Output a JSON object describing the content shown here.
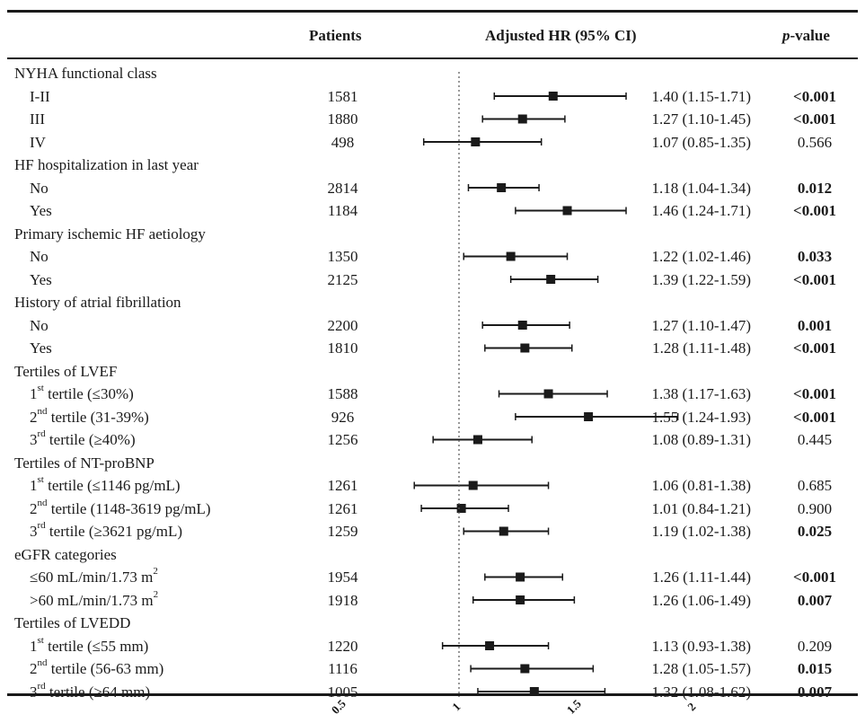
{
  "header": {
    "patients": "Patients",
    "hr": "Adjusted HR (95% CI)",
    "pvalue_italic": "p",
    "pvalue_rest": "-value"
  },
  "chart_data": {
    "type": "forest",
    "title": "",
    "reference_line": 1,
    "x_ticks": [
      "0.5",
      "1",
      "1.5",
      "2"
    ],
    "xlim": [
      0.5,
      2
    ],
    "rows": [
      {
        "label": "NYHA functional class",
        "header": true
      },
      {
        "label": "I-II",
        "patients": "1581",
        "hr": 1.4,
        "lo": 1.15,
        "hi": 1.71,
        "ci_text": "1.40 (1.15-1.71)",
        "p": "<0.001",
        "sig": true
      },
      {
        "label": "III",
        "patients": "1880",
        "hr": 1.27,
        "lo": 1.1,
        "hi": 1.45,
        "ci_text": "1.27 (1.10-1.45)",
        "p": "<0.001",
        "sig": true
      },
      {
        "label": "IV",
        "patients": "498",
        "hr": 1.07,
        "lo": 0.85,
        "hi": 1.35,
        "ci_text": "1.07 (0.85-1.35)",
        "p": "0.566",
        "sig": false
      },
      {
        "label": "HF hospitalization in last year",
        "header": true
      },
      {
        "label": "No",
        "patients": "2814",
        "hr": 1.18,
        "lo": 1.04,
        "hi": 1.34,
        "ci_text": "1.18 (1.04-1.34)",
        "p": "0.012",
        "sig": true
      },
      {
        "label": "Yes",
        "patients": "1184",
        "hr": 1.46,
        "lo": 1.24,
        "hi": 1.71,
        "ci_text": "1.46 (1.24-1.71)",
        "p": "<0.001",
        "sig": true
      },
      {
        "label": "Primary ischemic HF aetiology",
        "header": true
      },
      {
        "label": "No",
        "patients": "1350",
        "hr": 1.22,
        "lo": 1.02,
        "hi": 1.46,
        "ci_text": "1.22 (1.02-1.46)",
        "p": "0.033",
        "sig": true
      },
      {
        "label": "Yes",
        "patients": "2125",
        "hr": 1.39,
        "lo": 1.22,
        "hi": 1.59,
        "ci_text": "1.39 (1.22-1.59)",
        "p": "<0.001",
        "sig": true
      },
      {
        "label": "History of atrial fibrillation",
        "header": true
      },
      {
        "label": "No",
        "patients": "2200",
        "hr": 1.27,
        "lo": 1.1,
        "hi": 1.47,
        "ci_text": "1.27 (1.10-1.47)",
        "p": "0.001",
        "sig": true
      },
      {
        "label": "Yes",
        "patients": "1810",
        "hr": 1.28,
        "lo": 1.11,
        "hi": 1.48,
        "ci_text": "1.28 (1.11-1.48)",
        "p": "<0.001",
        "sig": true
      },
      {
        "label": "Tertiles of LVEF",
        "header": true
      },
      {
        "label_pre": "1",
        "label_sup": "st",
        "label_post": " tertile (≤30%)",
        "patients": "1588",
        "hr": 1.38,
        "lo": 1.17,
        "hi": 1.63,
        "ci_text": "1.38 (1.17-1.63)",
        "p": "<0.001",
        "sig": true
      },
      {
        "label_pre": "2",
        "label_sup": "nd",
        "label_post": " tertile (31-39%)",
        "patients": "926",
        "hr": 1.55,
        "lo": 1.24,
        "hi": 1.93,
        "ci_text": "1.55 (1.24-1.93)",
        "p": "<0.001",
        "sig": true
      },
      {
        "label_pre": "3",
        "label_sup": "rd",
        "label_post": " tertile (≥40%)",
        "patients": "1256",
        "hr": 1.08,
        "lo": 0.89,
        "hi": 1.31,
        "ci_text": "1.08 (0.89-1.31)",
        "p": "0.445",
        "sig": false
      },
      {
        "label": "Tertiles of NT-proBNP",
        "header": true
      },
      {
        "label_pre": "1",
        "label_sup": "st",
        "label_post": " tertile (≤1146 pg/mL)",
        "patients": "1261",
        "hr": 1.06,
        "lo": 0.81,
        "hi": 1.38,
        "ci_text": "1.06 (0.81-1.38)",
        "p": "0.685",
        "sig": false
      },
      {
        "label_pre": "2",
        "label_sup": "nd",
        "label_post": " tertile (1148-3619 pg/mL)",
        "patients": "1261",
        "hr": 1.01,
        "lo": 0.84,
        "hi": 1.21,
        "ci_text": "1.01 (0.84-1.21)",
        "p": "0.900",
        "sig": false
      },
      {
        "label_pre": "3",
        "label_sup": "rd",
        "label_post": " tertile (≥3621 pg/mL)",
        "patients": "1259",
        "hr": 1.19,
        "lo": 1.02,
        "hi": 1.38,
        "ci_text": "1.19 (1.02-1.38)",
        "p": "0.025",
        "sig": true
      },
      {
        "label": "eGFR categories",
        "header": true
      },
      {
        "label_pre": "≤60 mL/min/1.73 m",
        "label_sup": "2",
        "label_post": "",
        "patients": "1954",
        "hr": 1.26,
        "lo": 1.11,
        "hi": 1.44,
        "ci_text": "1.26 (1.11-1.44)",
        "p": "<0.001",
        "sig": true
      },
      {
        "label_pre": ">60 mL/min/1.73 m",
        "label_sup": "2",
        "label_post": "",
        "patients": "1918",
        "hr": 1.26,
        "lo": 1.06,
        "hi": 1.49,
        "ci_text": "1.26 (1.06-1.49)",
        "p": "0.007",
        "sig": true
      },
      {
        "label": "Tertiles of LVEDD",
        "header": true
      },
      {
        "label_pre": "1",
        "label_sup": "st",
        "label_post": " tertile (≤55 mm)",
        "patients": "1220",
        "hr": 1.13,
        "lo": 0.93,
        "hi": 1.38,
        "ci_text": "1.13 (0.93-1.38)",
        "p": "0.209",
        "sig": false
      },
      {
        "label_pre": "2",
        "label_sup": "nd",
        "label_post": " tertile (56-63 mm)",
        "patients": "1116",
        "hr": 1.28,
        "lo": 1.05,
        "hi": 1.57,
        "ci_text": "1.28 (1.05-1.57)",
        "p": "0.015",
        "sig": true
      },
      {
        "label_pre": "3",
        "label_sup": "rd",
        "label_post": " tertile (≥64 mm)",
        "patients": "1005",
        "hr": 1.32,
        "lo": 1.08,
        "hi": 1.62,
        "ci_text": "1.32 (1.08-1.62)",
        "p": "0.007",
        "sig": true
      }
    ]
  }
}
